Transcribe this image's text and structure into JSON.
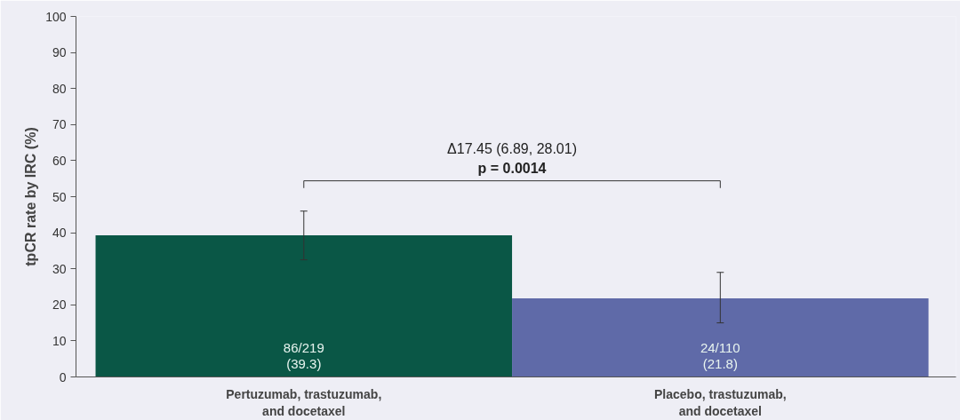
{
  "chart_data": {
    "type": "bar",
    "ylabel": "tpCR rate by IRC (%)",
    "categories": [
      "Pertuzumab, trastuzumab, and docetaxel",
      "Placebo, trastuzumab, and docetaxel"
    ],
    "values": [
      39.3,
      21.8
    ],
    "colors": [
      "#0a5746",
      "#5f6aa8"
    ],
    "errors": [
      [
        32.5,
        46.0
      ],
      [
        15.0,
        29.0
      ]
    ],
    "value_labels": [
      "86/219 (39.3)",
      "24/110 (21.8)"
    ],
    "ylim": [
      0,
      100
    ],
    "yticks": [
      0,
      10,
      20,
      30,
      40,
      50,
      60,
      70,
      80,
      90,
      100
    ],
    "grid": false,
    "annotations": [
      "Δ17.45 (6.89, 28.01)",
      "p = 0.0014"
    ]
  }
}
